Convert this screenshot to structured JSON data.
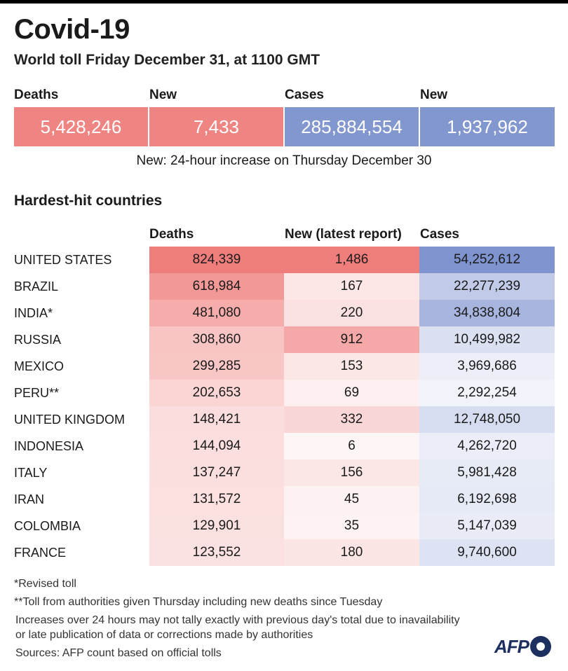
{
  "title": "Covid-19",
  "subtitle": "World toll Friday December 31, at 1100 GMT",
  "summary": {
    "deaths_label": "Deaths",
    "deaths_value": "5,428,246",
    "deaths_new_label": "New",
    "deaths_new_value": "7,433",
    "cases_label": "Cases",
    "cases_value": "285,884,554",
    "cases_new_label": "New",
    "cases_new_value": "1,937,962",
    "note": "New: 24-hour increase on Thursday December 30"
  },
  "colors": {
    "deaths": "#ee8583",
    "cases": "#8397cf",
    "deaths_max": "#ef7d7b",
    "cases_max": "#7f93cf"
  },
  "chart_data": {
    "type": "table",
    "title": "Hardest-hit countries",
    "columns": [
      "Deaths",
      "New (latest report)",
      "Cases"
    ],
    "rows": [
      {
        "country": "UNITED STATES",
        "deaths": "824,339",
        "new": "1,486",
        "cases": "54,252,612"
      },
      {
        "country": "BRAZIL",
        "deaths": "618,984",
        "new": "167",
        "cases": "22,277,239"
      },
      {
        "country": "INDIA*",
        "deaths": "481,080",
        "new": "220",
        "cases": "34,838,804"
      },
      {
        "country": "RUSSIA",
        "deaths": "308,860",
        "new": "912",
        "cases": "10,499,982"
      },
      {
        "country": "MEXICO",
        "deaths": "299,285",
        "new": "153",
        "cases": "3,969,686"
      },
      {
        "country": "PERU**",
        "deaths": "202,653",
        "new": "69",
        "cases": "2,292,254"
      },
      {
        "country": "UNITED KINGDOM",
        "deaths": "148,421",
        "new": "332",
        "cases": "12,748,050"
      },
      {
        "country": "INDONESIA",
        "deaths": "144,094",
        "new": "6",
        "cases": "4,262,720"
      },
      {
        "country": "ITALY",
        "deaths": "137,247",
        "new": "156",
        "cases": "5,981,428"
      },
      {
        "country": "IRAN",
        "deaths": "131,572",
        "new": "45",
        "cases": "6,192,698"
      },
      {
        "country": "COLOMBIA",
        "deaths": "129,901",
        "new": "35",
        "cases": "5,147,039"
      },
      {
        "country": "FRANCE",
        "deaths": "123,552",
        "new": "180",
        "cases": "9,740,600"
      }
    ]
  },
  "footnotes": {
    "revised": "*Revised toll",
    "peru": "**Toll from authorities given Thursday including new deaths since Tuesday",
    "increase_line1": "Increases over 24 hours may not tally exactly with previous day's total due to inavailability",
    "increase_line2": "or late publication of data or corrections made by authorities",
    "sources": "Sources: AFP count based on official tolls"
  },
  "logo": "AFP"
}
